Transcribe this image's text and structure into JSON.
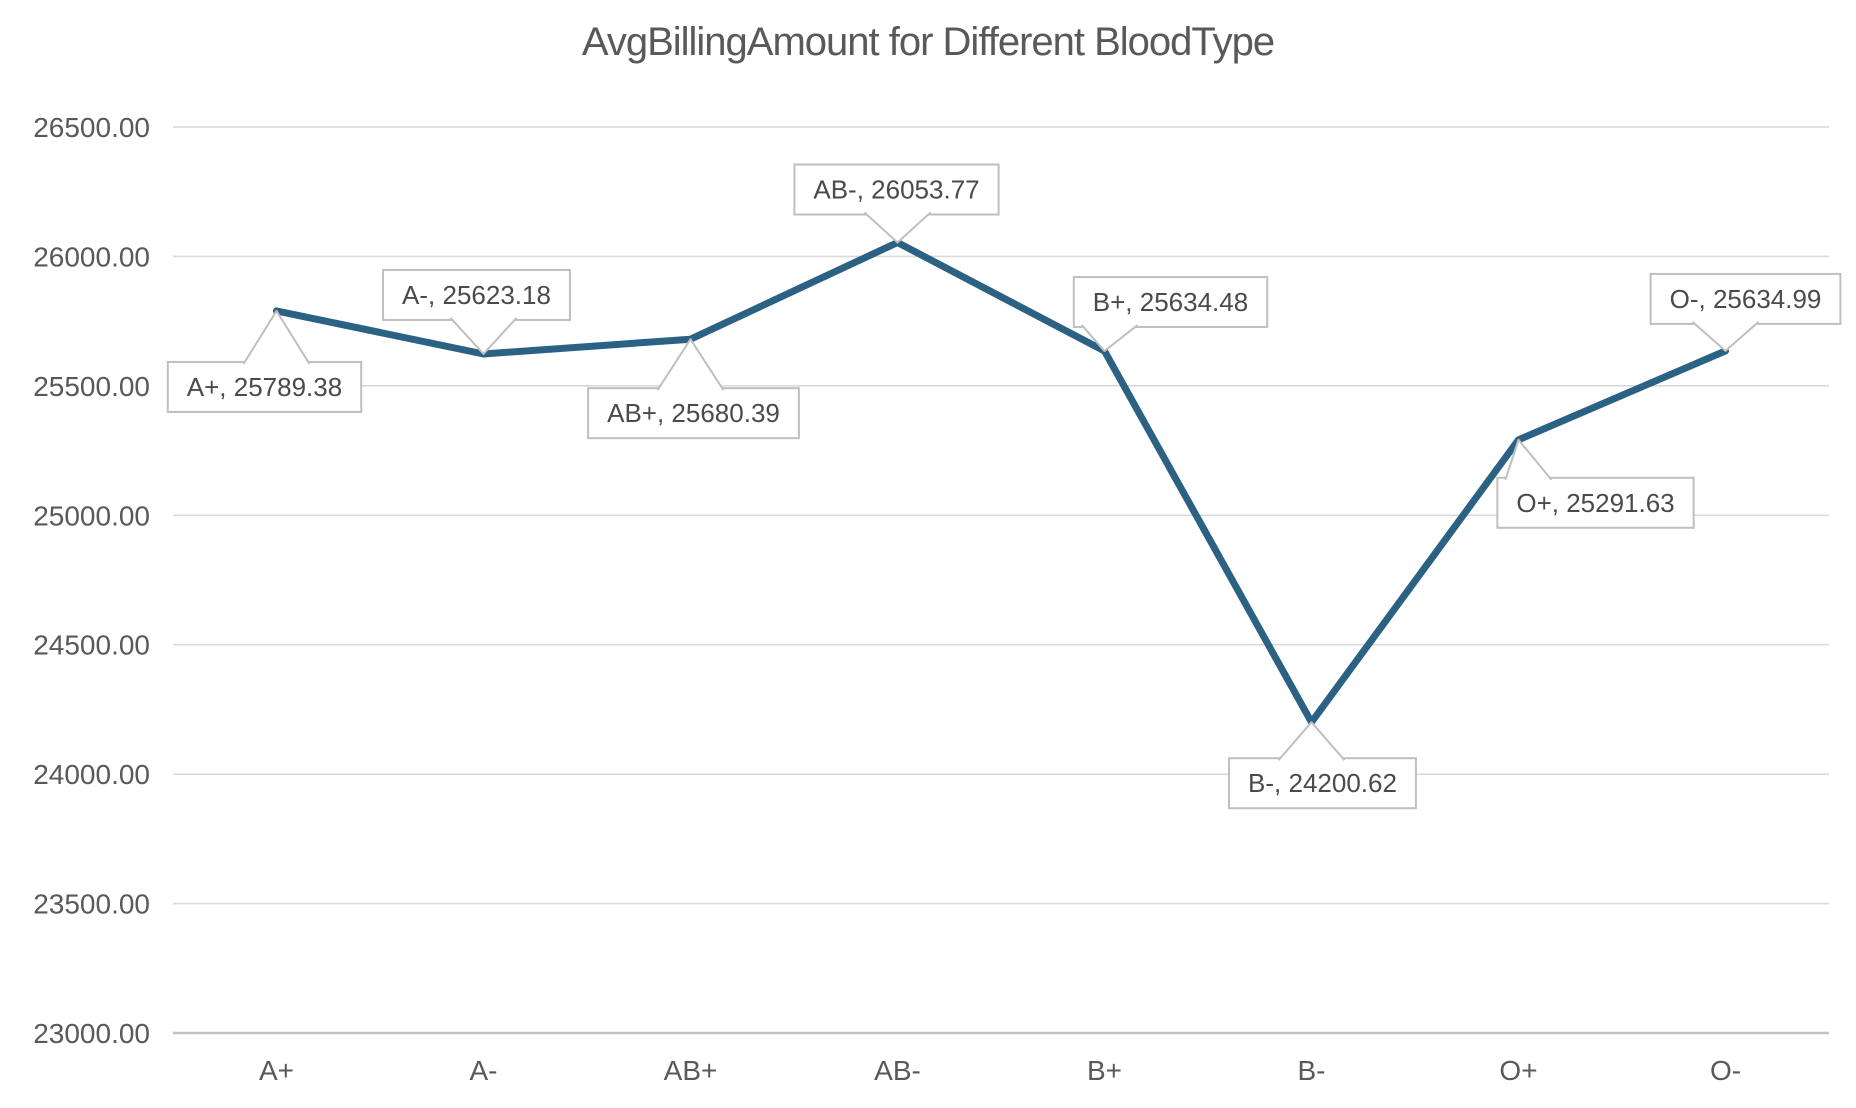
{
  "chart_data": {
    "type": "line",
    "title": "AvgBillingAmount for Different BloodType",
    "categories": [
      "A+",
      "A-",
      "AB+",
      "AB-",
      "B+",
      "B-",
      "O+",
      "O-"
    ],
    "values": [
      25789.38,
      25623.18,
      25680.39,
      26053.77,
      25634.48,
      24200.62,
      25291.63,
      25634.99
    ],
    "data_labels": [
      "A+, 25789.38",
      "A-, 25623.18",
      "AB+, 25680.39",
      "AB-, 26053.77",
      "B+, 25634.48",
      "B-, 24200.62",
      "O+, 25291.63",
      "O-, 25634.99"
    ],
    "ylim": [
      23000,
      26500
    ],
    "ytick_step": 500,
    "ytick_labels": [
      "26500.00",
      "26000.00",
      "25500.00",
      "25000.00",
      "24500.00",
      "24000.00",
      "23500.00",
      "23000.00"
    ],
    "xlabel": "",
    "ylabel": "",
    "grid": true,
    "legend_position": "none",
    "colors": {
      "line": "#2B6284",
      "gridline": "#D9D9D9",
      "axis_line": "#C3C3C3",
      "tick_label": "#595959",
      "data_label_text": "#4A4A4A",
      "callout_border": "#BFBFBF",
      "callout_fill": "#FFFFFF",
      "background": "#FFFFFF"
    }
  }
}
